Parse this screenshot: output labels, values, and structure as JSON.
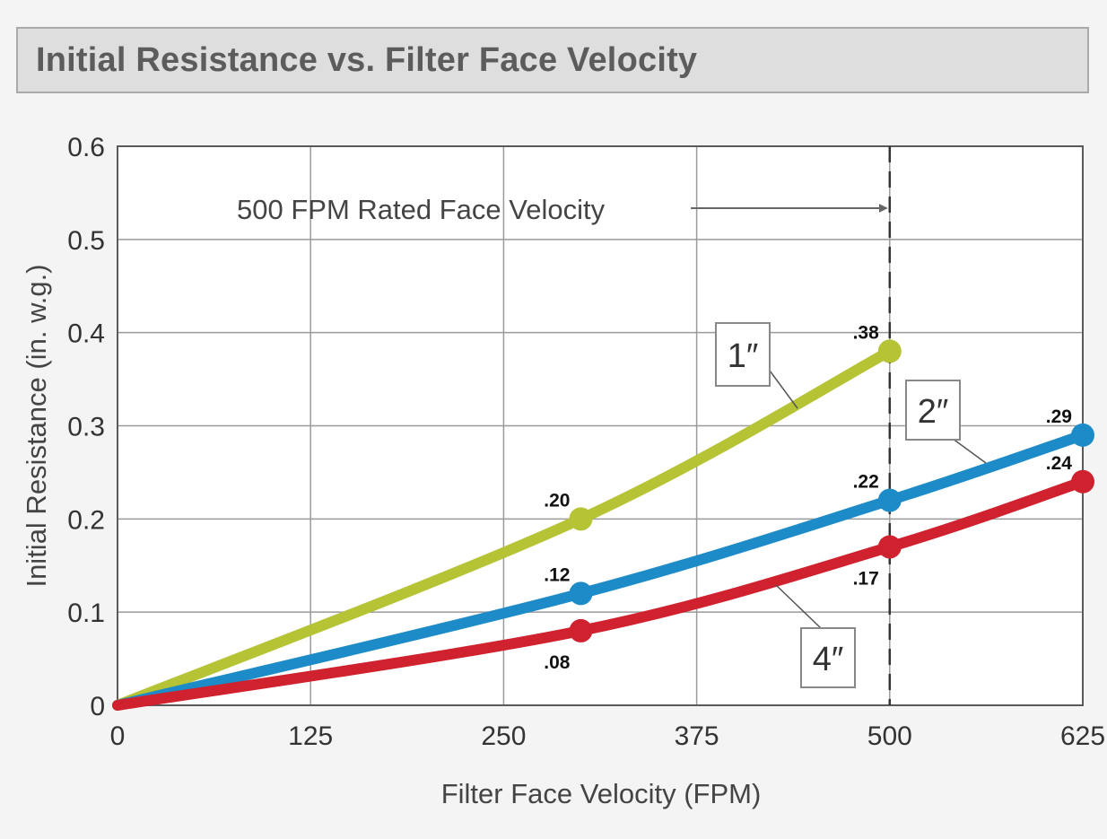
{
  "header": {
    "title": "Initial Resistance vs. Filter Face Velocity"
  },
  "chart_data": {
    "type": "line",
    "title": "Initial Resistance vs. Filter Face Velocity",
    "xlabel": "Filter Face Velocity (FPM)",
    "ylabel": "Initial Resistance (in. w.g.)",
    "xlim": [
      0,
      625
    ],
    "ylim": [
      0,
      0.6
    ],
    "x_ticks": [
      0,
      125,
      250,
      375,
      500,
      625
    ],
    "x_tick_labels": [
      "0",
      "125",
      "250",
      "375",
      "500",
      "625"
    ],
    "y_ticks": [
      0,
      0.1,
      0.2,
      0.3,
      0.4,
      0.5,
      0.6
    ],
    "y_tick_labels": [
      "0",
      "0.1",
      "0.2",
      "0.3",
      "0.4",
      "0.5",
      "0.6"
    ],
    "grid": true,
    "series": [
      {
        "name": "1″",
        "color": "#b5c335",
        "points": [
          [
            0,
            0
          ],
          [
            300,
            0.2
          ],
          [
            500,
            0.38
          ]
        ],
        "data_labels": [
          {
            "x": 300,
            "y": 0.2,
            "text": ".20",
            "pos": "above-left"
          },
          {
            "x": 500,
            "y": 0.38,
            "text": ".38",
            "pos": "above-left"
          }
        ]
      },
      {
        "name": "2″",
        "color": "#1c8bc8",
        "points": [
          [
            0,
            0
          ],
          [
            300,
            0.12
          ],
          [
            500,
            0.22
          ],
          [
            625,
            0.29
          ]
        ],
        "data_labels": [
          {
            "x": 300,
            "y": 0.12,
            "text": ".12",
            "pos": "above-left"
          },
          {
            "x": 500,
            "y": 0.22,
            "text": ".22",
            "pos": "above-left"
          },
          {
            "x": 625,
            "y": 0.29,
            "text": ".29",
            "pos": "above-left"
          }
        ]
      },
      {
        "name": "4″",
        "color": "#d0212f",
        "points": [
          [
            0,
            0
          ],
          [
            300,
            0.08
          ],
          [
            500,
            0.17
          ],
          [
            625,
            0.24
          ]
        ],
        "data_labels": [
          {
            "x": 300,
            "y": 0.08,
            "text": ".08",
            "pos": "below-left"
          },
          {
            "x": 500,
            "y": 0.17,
            "text": ".17",
            "pos": "below-left"
          },
          {
            "x": 625,
            "y": 0.24,
            "text": ".24",
            "pos": "above-left"
          }
        ]
      }
    ],
    "annotations": [
      {
        "type": "vline",
        "x": 500,
        "style": "dashed",
        "text": "500 FPM Rated Face Velocity"
      }
    ]
  }
}
